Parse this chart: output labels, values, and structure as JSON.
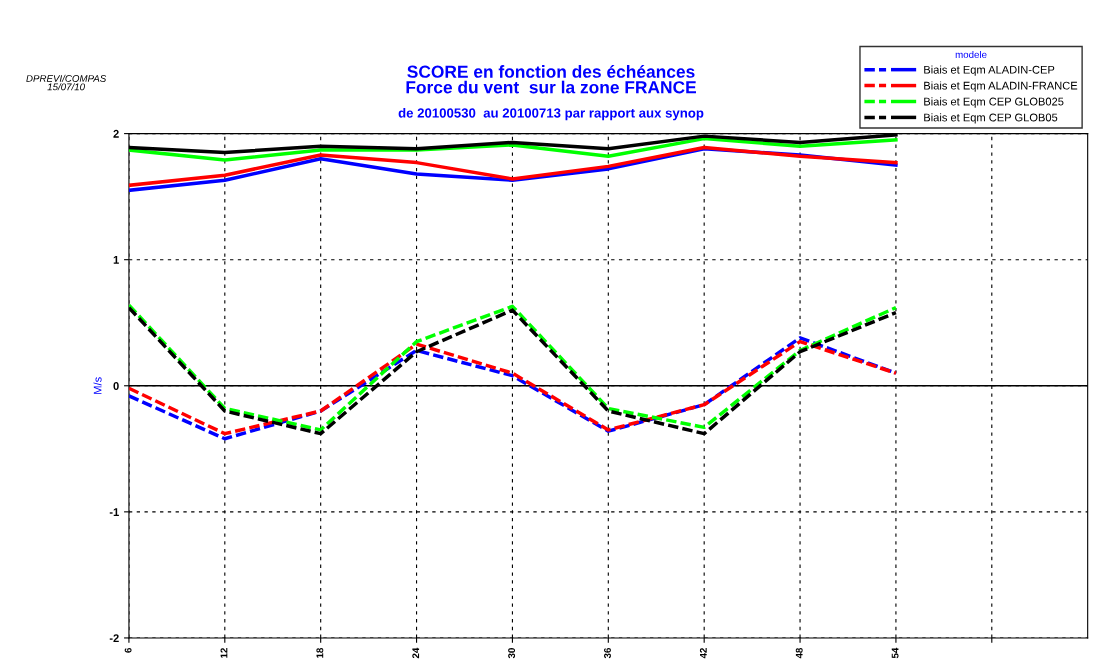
{
  "chart_data": {
    "type": "line",
    "title": "SCORE en fonction des échéances\nForce du vent  sur la zone FRANCE",
    "subtitle": "de 20100530  au 20100713 par rapport aux synop",
    "ylabel": "M/s",
    "legend_title": "modele",
    "annotations": [
      "DPREVI/COMPAS\n15/07/10"
    ],
    "x": [
      6,
      12,
      18,
      24,
      30,
      36,
      42,
      48,
      54
    ],
    "xlim": [
      6,
      66
    ],
    "xticks": [
      6,
      12,
      18,
      24,
      30,
      36,
      42,
      48,
      54,
      {
        "value": 60,
        "label": null
      }
    ],
    "ylim": [
      -2,
      2
    ],
    "yticks": [
      -2,
      -1,
      0,
      1,
      2
    ],
    "grid": true,
    "legend": "top right",
    "ref_lines": [
      {
        "axis": "y",
        "value": 0,
        "color": "#000000",
        "line_style": "solid"
      }
    ],
    "series": [
      {
        "name": "Biais et Eqm ALADIN-CEP",
        "color": "#0000ff",
        "line_style": "dashed",
        "values": [
          -0.08,
          -0.42,
          -0.2,
          0.28,
          0.08,
          -0.36,
          -0.15,
          0.38,
          0.1
        ]
      },
      {
        "name": "Biais et Eqm ALADIN-FRANCE",
        "color": "#ff0000",
        "line_style": "dashed",
        "values": [
          -0.02,
          -0.38,
          -0.2,
          0.33,
          0.1,
          -0.35,
          -0.15,
          0.35,
          0.1
        ]
      },
      {
        "name": "Biais et Eqm CEP GLOB025",
        "color": "#00ff00",
        "line_style": "dashed",
        "values": [
          0.64,
          -0.18,
          -0.35,
          0.35,
          0.63,
          -0.18,
          -0.33,
          0.28,
          0.62
        ]
      },
      {
        "name": "Biais et Eqm CEP GLOB05",
        "color": "#000000",
        "line_style": "dashed",
        "values": [
          0.62,
          -0.2,
          -0.38,
          0.27,
          0.6,
          -0.2,
          -0.38,
          0.27,
          0.58
        ]
      },
      {
        "color": "#0000ff",
        "line_style": "solid",
        "values": [
          1.55,
          1.63,
          1.8,
          1.68,
          1.63,
          1.72,
          1.88,
          1.83,
          1.75
        ]
      },
      {
        "color": "#ff0000",
        "line_style": "solid",
        "values": [
          1.59,
          1.67,
          1.83,
          1.77,
          1.64,
          1.74,
          1.89,
          1.82,
          1.77
        ]
      },
      {
        "color": "#00ff00",
        "line_style": "solid",
        "values": [
          1.87,
          1.79,
          1.87,
          1.87,
          1.91,
          1.82,
          1.96,
          1.9,
          1.95
        ]
      },
      {
        "color": "#000000",
        "line_style": "solid",
        "values": [
          1.89,
          1.85,
          1.9,
          1.88,
          1.93,
          1.88,
          1.98,
          1.93,
          1.99
        ]
      }
    ]
  }
}
